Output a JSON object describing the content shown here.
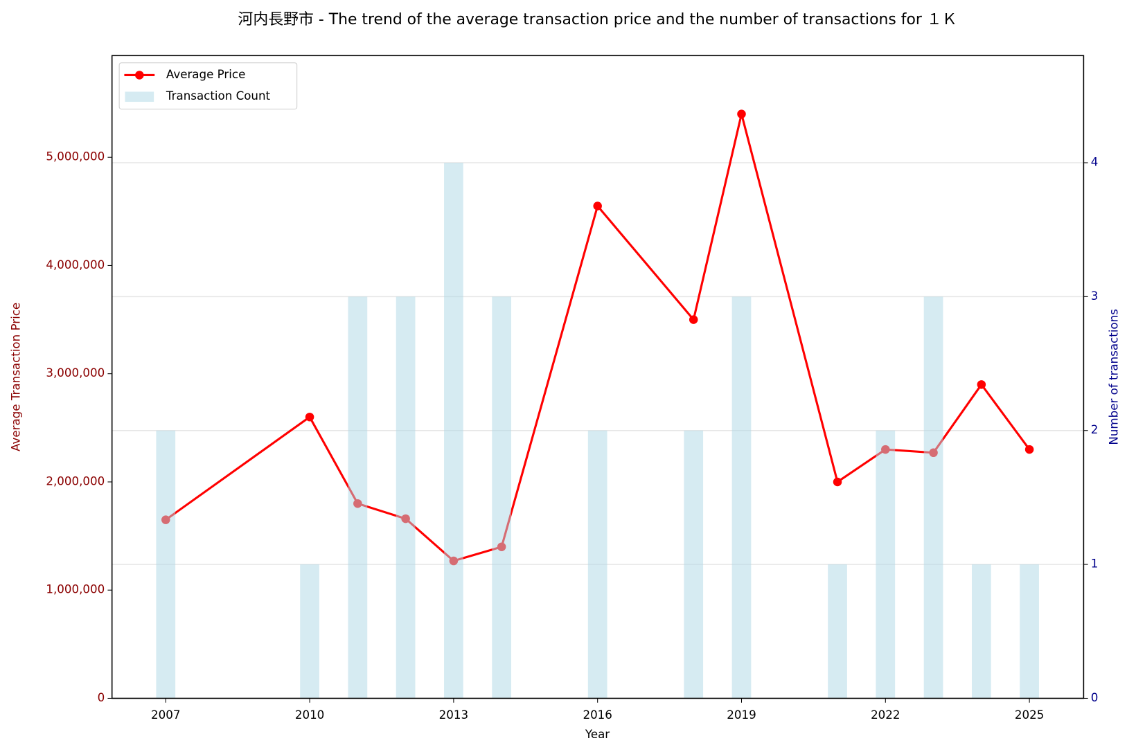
{
  "chart_data": {
    "type": "line",
    "title": "河内長野市 - The trend of the average transaction price and the number of transactions for １Ｋ",
    "xlabel": "Year",
    "ylabel": "Average Transaction Price",
    "y2label": "Number of transactions",
    "ylabel_color": "#8b0000",
    "y2label_color": "#00008b",
    "x": [
      2007,
      2010,
      2011,
      2012,
      2013,
      2014,
      2016,
      2018,
      2019,
      2021,
      2022,
      2023,
      2024,
      2025
    ],
    "series": [
      {
        "name": "Average Price",
        "type": "line",
        "color": "#ff0000",
        "values": [
          1650000,
          2600000,
          1800000,
          1660000,
          1270000,
          1400000,
          4550000,
          3500000,
          5400000,
          2000000,
          2300000,
          2270000,
          2900000,
          2300000
        ]
      },
      {
        "name": "Transaction Count",
        "type": "bar",
        "axis": "y2",
        "color": "#add8e6",
        "values": [
          2,
          1,
          3,
          3,
          4,
          3,
          2,
          2,
          3,
          1,
          2,
          3,
          1,
          1
        ]
      }
    ],
    "xlim": [
      2005.88,
      2026.13
    ],
    "xticks": [
      2007,
      2010,
      2013,
      2016,
      2019,
      2022,
      2025
    ],
    "ylim": [
      0,
      5940000
    ],
    "yticks": [
      0,
      {
        "value": 1000000,
        "label": "1,000,000"
      },
      {
        "value": 2000000,
        "label": "2,000,000"
      },
      {
        "value": 3000000,
        "label": "3,000,000"
      },
      {
        "value": 4000000,
        "label": "4,000,000"
      },
      {
        "value": 5000000,
        "label": "5,000,000"
      }
    ],
    "y2lim": [
      0,
      4.8
    ],
    "y2ticks": [
      0,
      1,
      2,
      3,
      4
    ],
    "grid": true,
    "legend": "upper-left"
  }
}
